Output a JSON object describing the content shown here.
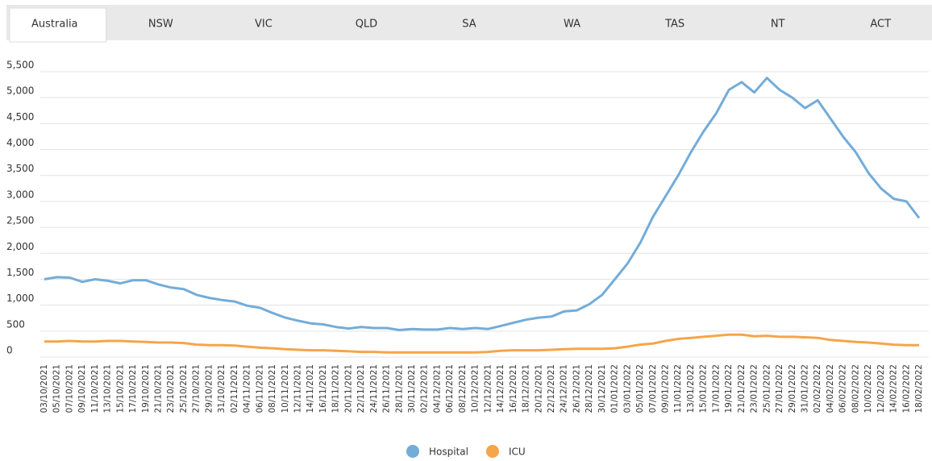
{
  "tabs": [
    "Australia",
    "NSW",
    "VIC",
    "QLD",
    "SA",
    "WA",
    "TAS",
    "NT",
    "ACT"
  ],
  "chart_data": {
    "type": "line",
    "categories": [
      "03/10/2021",
      "05/10/2021",
      "07/10/2021",
      "09/10/2021",
      "11/10/2021",
      "13/10/2021",
      "15/10/2021",
      "17/10/2021",
      "19/10/2021",
      "21/10/2021",
      "23/10/2021",
      "25/10/2021",
      "27/10/2021",
      "29/10/2021",
      "31/10/2021",
      "02/11/2021",
      "04/11/2021",
      "06/11/2021",
      "08/11/2021",
      "10/11/2021",
      "12/11/2021",
      "14/11/2021",
      "16/11/2021",
      "18/11/2021",
      "20/11/2021",
      "22/11/2021",
      "24/11/2021",
      "26/11/2021",
      "28/11/2021",
      "30/11/2021",
      "02/12/2021",
      "04/12/2021",
      "06/12/2021",
      "08/12/2021",
      "10/12/2021",
      "12/12/2021",
      "14/12/2021",
      "16/12/2021",
      "18/12/2021",
      "20/12/2021",
      "22/12/2021",
      "24/12/2021",
      "26/12/2021",
      "28/12/2021",
      "30/12/2021",
      "01/01/2022",
      "03/01/2022",
      "05/01/2022",
      "07/01/2022",
      "09/01/2022",
      "11/01/2022",
      "13/01/2022",
      "15/01/2022",
      "17/01/2022",
      "19/01/2022",
      "21/01/2022",
      "23/01/2022",
      "25/01/2022",
      "27/01/2022",
      "29/01/2022",
      "31/01/2022",
      "02/02/2022",
      "04/02/2022",
      "06/02/2022",
      "08/02/2022",
      "10/02/2022",
      "12/02/2022",
      "14/02/2022",
      "16/02/2022",
      "18/02/2022"
    ],
    "series": [
      {
        "name": "Hospital",
        "color": "#74acd8",
        "values": [
          1500,
          1540,
          1530,
          1450,
          1500,
          1470,
          1420,
          1480,
          1480,
          1400,
          1340,
          1310,
          1200,
          1140,
          1100,
          1070,
          990,
          950,
          850,
          760,
          700,
          650,
          630,
          580,
          550,
          580,
          560,
          560,
          520,
          540,
          530,
          530,
          560,
          540,
          560,
          540,
          600,
          660,
          720,
          760,
          780,
          880,
          900,
          1020,
          1200,
          1500,
          1800,
          2200,
          2700,
          3100,
          3500,
          3950,
          4350,
          4700,
          5150,
          5300,
          5100,
          5380,
          5150,
          5000,
          4800,
          4950,
          4600,
          4250,
          3950,
          3550,
          3250,
          3050,
          3000,
          2680
        ]
      },
      {
        "name": "ICU",
        "color": "#f5a54a",
        "values": [
          300,
          300,
          310,
          300,
          300,
          310,
          310,
          300,
          290,
          280,
          280,
          270,
          240,
          230,
          230,
          220,
          200,
          180,
          170,
          150,
          140,
          130,
          130,
          120,
          110,
          100,
          100,
          90,
          90,
          90,
          90,
          90,
          90,
          90,
          90,
          100,
          120,
          130,
          130,
          130,
          140,
          150,
          160,
          160,
          160,
          170,
          200,
          240,
          260,
          310,
          350,
          370,
          390,
          410,
          430,
          430,
          400,
          410,
          390,
          390,
          380,
          370,
          330,
          310,
          290,
          280,
          260,
          240,
          230,
          230
        ]
      }
    ],
    "ylim": [
      0,
      5500
    ],
    "yticks": [
      0,
      500,
      {
        "value": 1000,
        "label": "1,000"
      },
      {
        "value": 1500,
        "label": "1,500"
      },
      {
        "value": 2000,
        "label": "2,000"
      },
      {
        "value": 2500,
        "label": "2,500"
      },
      {
        "value": 3000,
        "label": "3,000"
      },
      {
        "value": 3500,
        "label": "3,500"
      },
      {
        "value": 4000,
        "label": "4,000"
      },
      {
        "value": 4500,
        "label": "4,500"
      },
      {
        "value": 5000,
        "label": "5,000"
      },
      {
        "value": 5500,
        "label": "5,500"
      }
    ],
    "grid": true,
    "legend": "bottom"
  }
}
